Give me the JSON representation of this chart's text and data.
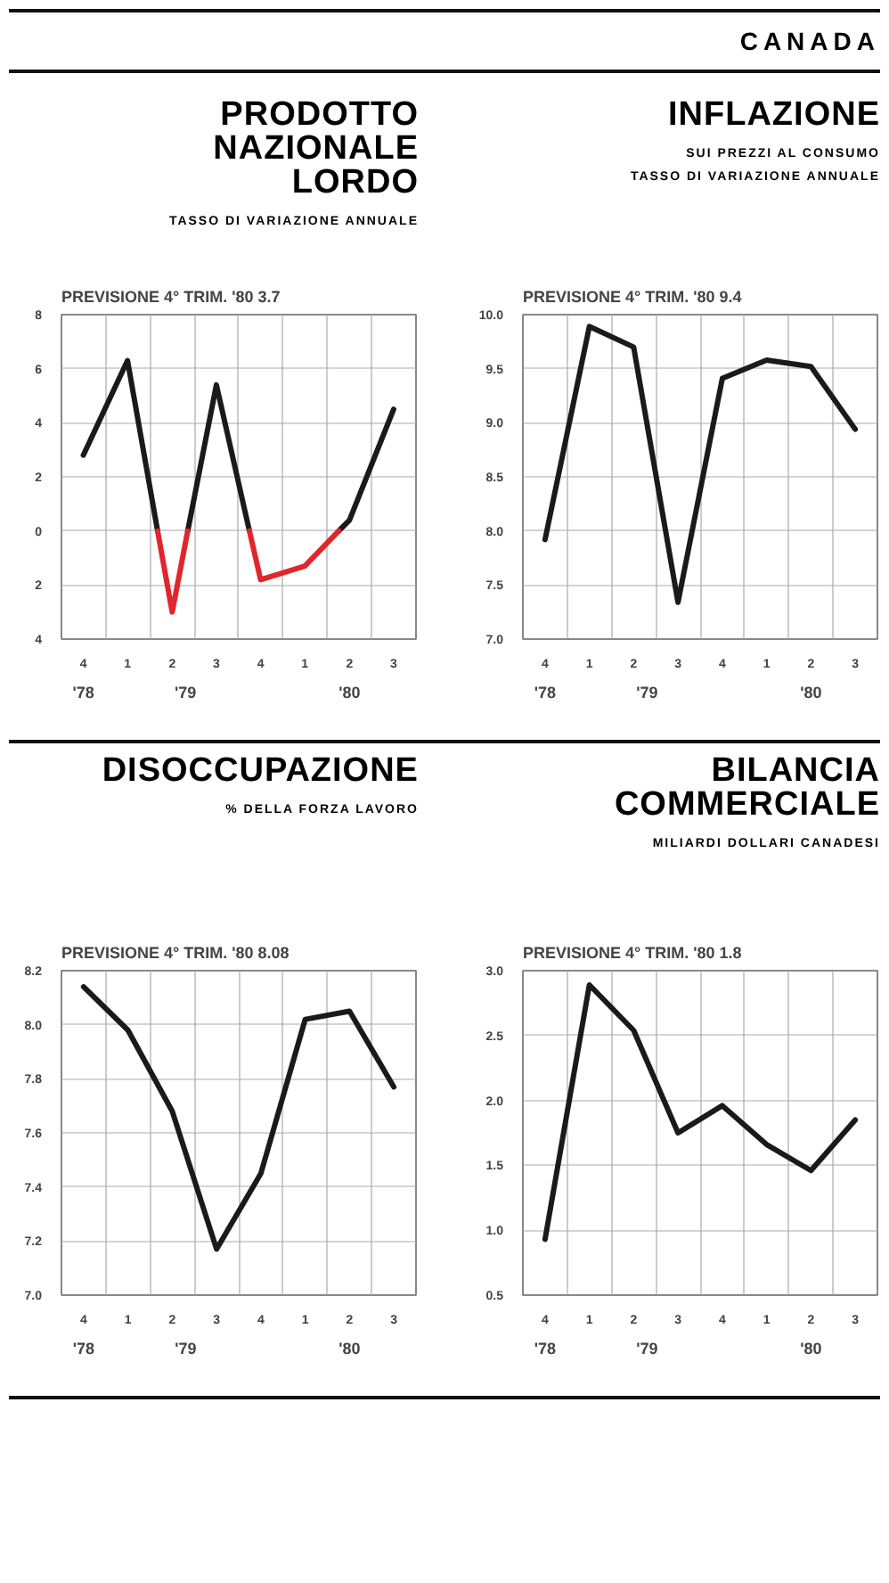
{
  "chart_data": [
    {
      "type": "other",
      "title": "CANADA"
    },
    {
      "type": "line",
      "title": "PRODOTTO\nNAZIONALE\nLORDO",
      "subtitle": "TASSO DI VARIAZIONE ANNUALE",
      "annotations": [
        "PREVISIONE 4° TRIM. '80   3.7",
        "'78",
        "'79",
        "'80"
      ],
      "xlim": [
        "1978-10-01",
        "1980-09-30"
      ],
      "xticks": [
        {
          "value": "1978-11-15",
          "label": "4"
        },
        {
          "value": "1979-02-14",
          "label": "1"
        },
        {
          "value": "1979-05-17",
          "label": "2"
        },
        {
          "value": "1979-08-16",
          "label": "3"
        },
        {
          "value": "1979-11-15",
          "label": "4"
        },
        {
          "value": "1980-02-14",
          "label": "1"
        },
        {
          "value": "1980-05-16",
          "label": "2"
        },
        {
          "value": "1980-08-15",
          "label": "3"
        }
      ],
      "series": [
        {
          "color": "#1a1a1a",
          "x": [
            "1978-11-15",
            "1979-02-14",
            "1979-04-17",
            null,
            "1979-06-18",
            "1979-08-16",
            "1979-10-23",
            null,
            "1980-04-24",
            "1980-05-16",
            "1980-08-15"
          ],
          "values": [
            2.8,
            6.3,
            0,
            null,
            0,
            5.4,
            0,
            null,
            0,
            0.4,
            4.5
          ]
        },
        {
          "color": "#e0262a",
          "x": [
            "1979-04-17",
            "1979-05-17",
            "1979-06-18",
            null,
            "1979-10-23",
            "1979-11-15",
            "1980-02-14",
            "1980-04-24"
          ],
          "values": [
            0,
            -3.0,
            0,
            null,
            0,
            -1.8,
            -1.3,
            0
          ]
        }
      ],
      "ylim": [
        -4,
        8
      ],
      "yticks": [
        8,
        6,
        4,
        2,
        0,
        {
          "value": -2,
          "label": "2"
        },
        {
          "value": -4,
          "label": "4"
        }
      ],
      "grid": true
    },
    {
      "type": "line",
      "title": "INFLAZIONE",
      "subtitle": "SUI PREZZI AL CONSUMO\nTASSO DI VARIAZIONE ANNUALE",
      "annotations": [
        "PREVISIONE 4° TRIM. '80   9.4",
        "'78",
        "'79",
        "'80"
      ],
      "categories": [
        "4",
        "1",
        "2",
        "3",
        "4",
        "1",
        "2",
        "3"
      ],
      "series": [
        {
          "color": "#1a1a1a",
          "values": [
            7.92,
            9.89,
            9.7,
            7.34,
            9.41,
            9.58,
            9.52,
            8.94
          ]
        }
      ],
      "ylim": [
        7,
        10
      ],
      "yticks": [
        {
          "value": 10,
          "label": "10.0"
        },
        9.5,
        {
          "value": 9,
          "label": "9.0"
        },
        8.5,
        {
          "value": 8,
          "label": "8.0"
        },
        7.5,
        {
          "value": 7,
          "label": "7.0"
        }
      ],
      "grid": true
    },
    {
      "type": "line",
      "title": "DISOCCUPAZIONE",
      "subtitle": "% DELLA FORZA LAVORO",
      "annotations": [
        "PREVISIONE 4° TRIM. '80 8.08",
        "'78",
        "'79",
        "'80"
      ],
      "categories": [
        "4",
        "1",
        "2",
        "3",
        "4",
        "1",
        "2",
        "3"
      ],
      "series": [
        {
          "color": "#1a1a1a",
          "values": [
            8.14,
            7.98,
            7.68,
            7.17,
            7.45,
            8.02,
            8.05,
            7.77
          ]
        }
      ],
      "ylim": [
        7,
        8.2
      ],
      "yticks": [
        8.2,
        {
          "value": 8,
          "label": "8.0"
        },
        7.8,
        7.6,
        7.4,
        7.2,
        {
          "value": 7,
          "label": "7.0"
        }
      ],
      "grid": true
    },
    {
      "type": "line",
      "title": "BILANCIA\nCOMMERCIALE",
      "subtitle": "MILIARDI DOLLARI CANADESI",
      "annotations": [
        "PREVISIONE 4° TRIM. '80   1.8",
        "'78",
        "'79",
        "'80"
      ],
      "categories": [
        "4",
        "1",
        "2",
        "3",
        "4",
        "1",
        "2",
        "3"
      ],
      "series": [
        {
          "color": "#1a1a1a",
          "values": [
            0.93,
            2.89,
            2.54,
            1.75,
            1.96,
            1.66,
            1.46,
            1.85
          ]
        }
      ],
      "ylim": [
        0.5,
        3
      ],
      "yticks": [
        {
          "value": 3,
          "label": "3.0"
        },
        2.5,
        {
          "value": 2,
          "label": "2.0"
        },
        1.5,
        {
          "value": 1,
          "label": "1.0"
        },
        0.5
      ],
      "grid": true
    }
  ]
}
